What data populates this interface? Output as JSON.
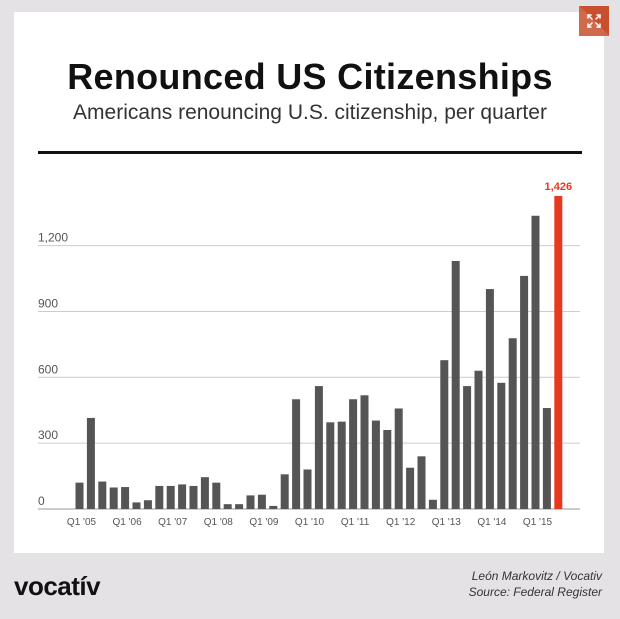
{
  "title": "Renounced US Citizenships",
  "subtitle": "Americans renouncing U.S. citizenship, per quarter",
  "logo": "vocatív",
  "credit_author": "León Markovitz / Vocativ",
  "credit_source": "Source: Federal Register",
  "colors": {
    "bar": "#555555",
    "highlight": "#e8391e",
    "grid": "#cccccc",
    "frame": "#e4e2e4",
    "expand_badge": "#c8502e"
  },
  "icons": {
    "expand": "expand-arrows-icon"
  },
  "chart_data": {
    "type": "bar",
    "title": "Renounced US Citizenships",
    "subtitle": "Americans renouncing U.S. citizenship, per quarter",
    "xlabel": "",
    "ylabel": "",
    "ylim": [
      0,
      1426
    ],
    "yticks": [
      0,
      300,
      600,
      900,
      1200
    ],
    "ytick_labels": [
      "0",
      "300",
      "600",
      "900",
      "1,200"
    ],
    "x_tick_labels": [
      {
        "index": 0,
        "label": "Q1 '05"
      },
      {
        "index": 4,
        "label": "Q1 '06"
      },
      {
        "index": 8,
        "label": "Q1 '07"
      },
      {
        "index": 12,
        "label": "Q1 '08"
      },
      {
        "index": 16,
        "label": "Q1 '09"
      },
      {
        "index": 20,
        "label": "Q1 '10"
      },
      {
        "index": 24,
        "label": "Q1 '11"
      },
      {
        "index": 28,
        "label": "Q1 '12"
      },
      {
        "index": 32,
        "label": "Q1 '13"
      },
      {
        "index": 36,
        "label": "Q1 '14"
      },
      {
        "index": 40,
        "label": "Q1 '15"
      }
    ],
    "values": [
      120,
      415,
      125,
      98,
      100,
      30,
      40,
      105,
      105,
      112,
      105,
      145,
      120,
      22,
      22,
      62,
      65,
      14,
      158,
      500,
      180,
      560,
      395,
      398,
      500,
      518,
      403,
      360,
      458,
      188,
      240,
      42,
      678,
      1130,
      560,
      630,
      1002,
      575,
      778,
      1062,
      1336,
      460,
      1426
    ],
    "highlight": {
      "index": 42,
      "label": "1,426"
    },
    "grid": true,
    "legend": "none"
  }
}
